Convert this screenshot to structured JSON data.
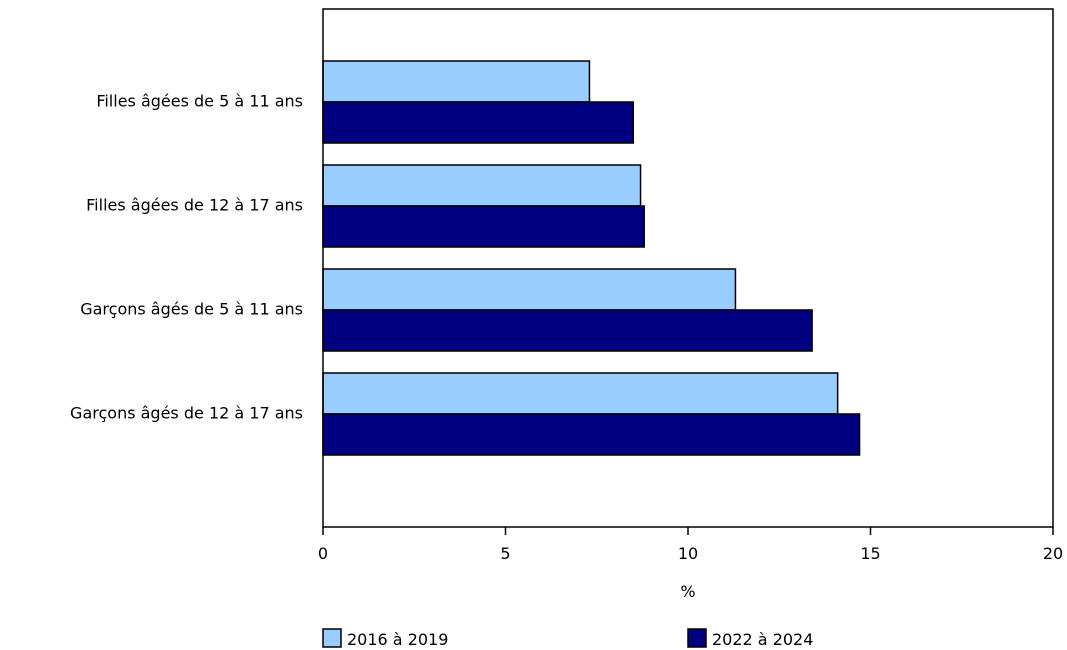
{
  "chart_data": {
    "type": "bar",
    "orientation": "horizontal",
    "categories": [
      "Filles âgées de 5 à 11 ans",
      "Filles âgées de 12 à 17 ans",
      "Garçons âgés de 5 à 11 ans",
      "Garçons âgés de 12 à 17 ans"
    ],
    "series": [
      {
        "name": "2016 à 2019",
        "color": "#99ccff",
        "values": [
          7.3,
          8.7,
          11.3,
          14.1
        ]
      },
      {
        "name": "2022 à 2024",
        "color": "#000080",
        "values": [
          8.5,
          8.8,
          13.4,
          14.7
        ]
      }
    ],
    "xlabel": "%",
    "ylabel": "",
    "xlim": [
      0,
      20
    ],
    "xticks": [
      "0",
      "5",
      "10",
      "15",
      "20"
    ],
    "grid": false,
    "legend_position": "bottom"
  }
}
